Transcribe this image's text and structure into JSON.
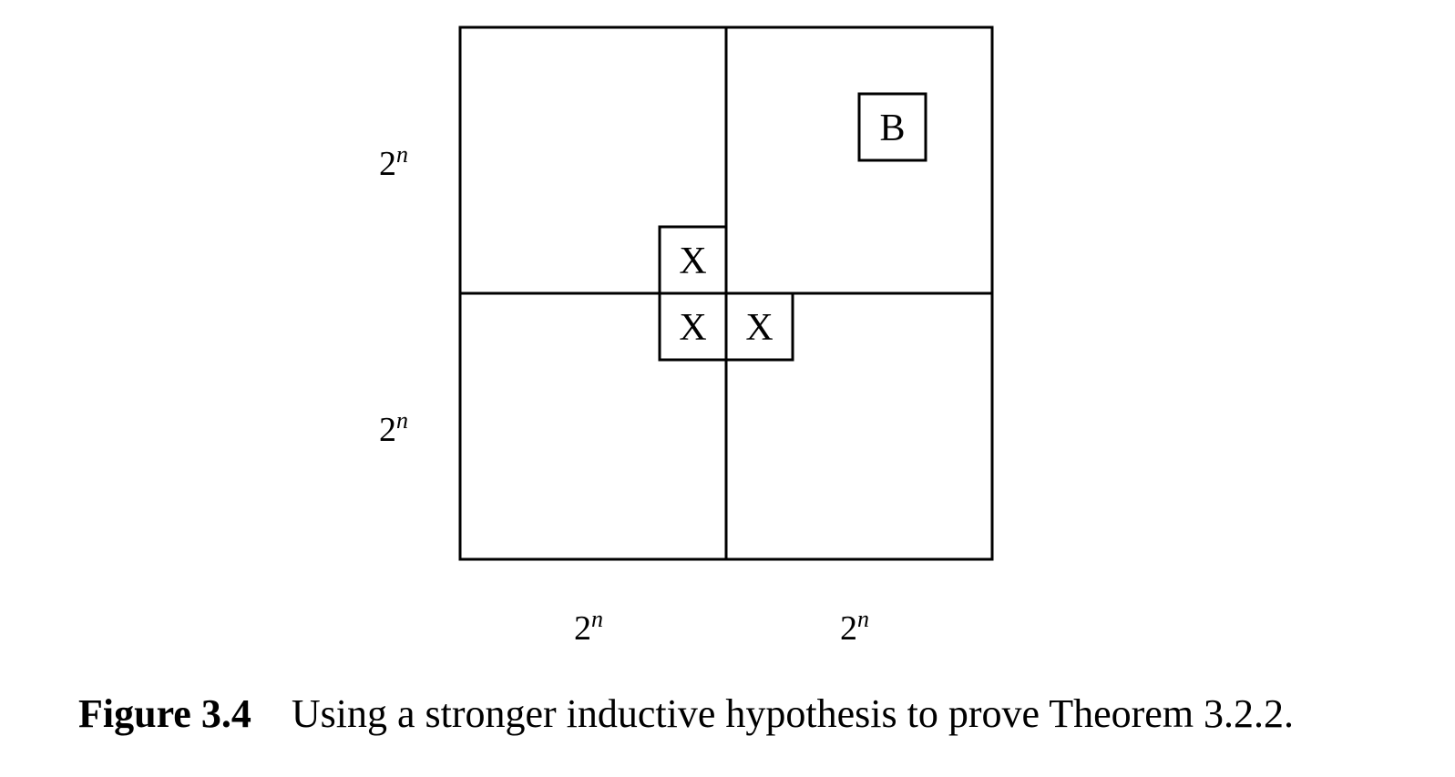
{
  "diagram": {
    "labels": {
      "dimension_base": "2",
      "dimension_exponent": "n",
      "defective_cell": "B",
      "tromino_cell": "X"
    },
    "caption": {
      "label": "Figure 3.4",
      "text": "Using a stronger inductive hypothesis to prove Theorem 3.2.2."
    }
  }
}
